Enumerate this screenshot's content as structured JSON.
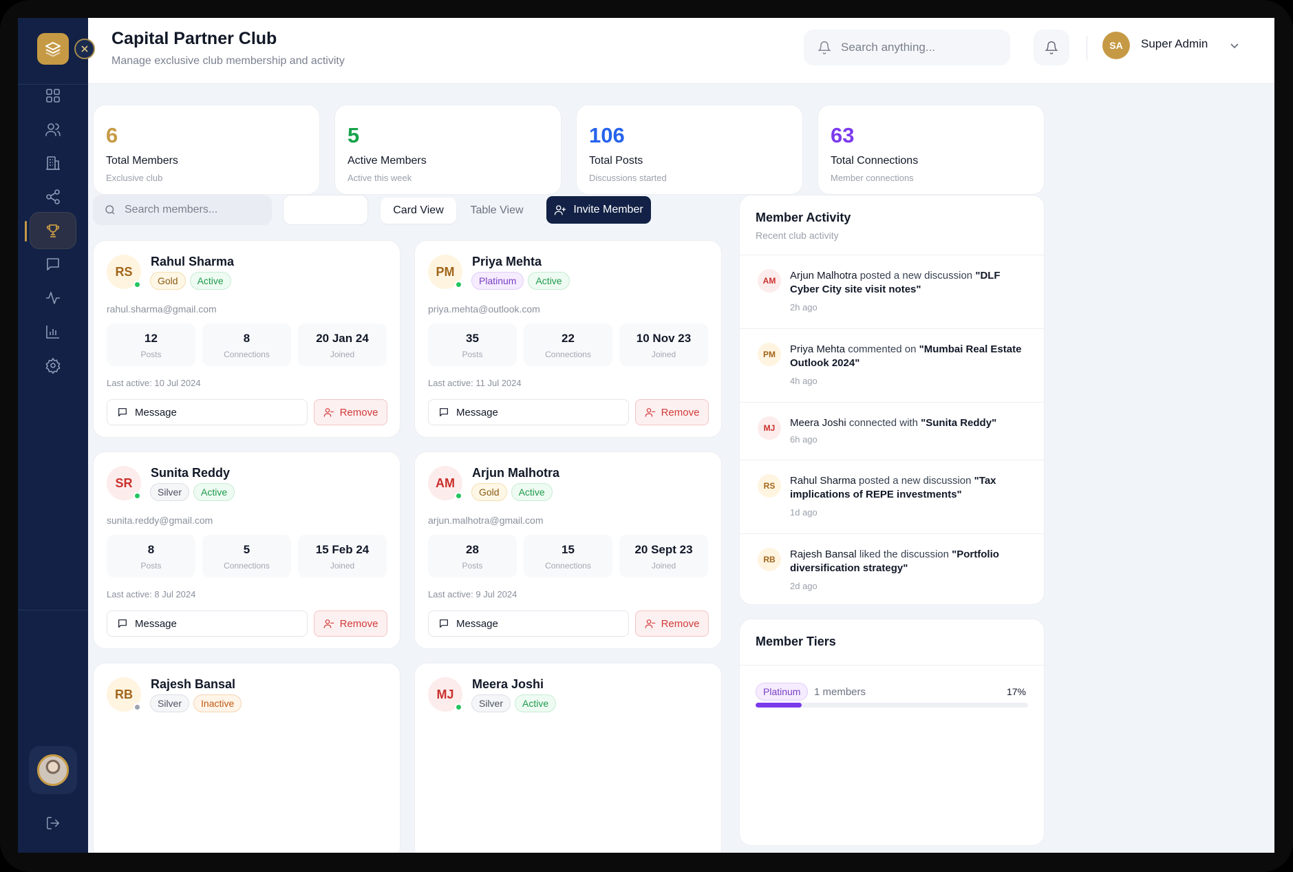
{
  "header": {
    "title": "Capital Partner Club",
    "subtitle": "Manage exclusive club membership and activity",
    "search_placeholder": "Search anything...",
    "user_initials": "SA",
    "user_name": "Super Admin"
  },
  "sidebar": {
    "items": [
      {
        "icon": "dashboard-icon",
        "active": false
      },
      {
        "icon": "users-icon",
        "active": false
      },
      {
        "icon": "building-icon",
        "active": false
      },
      {
        "icon": "share-icon",
        "active": false
      },
      {
        "icon": "trophy-icon",
        "active": true
      },
      {
        "icon": "message-icon",
        "active": false
      },
      {
        "icon": "activity-icon",
        "active": false
      },
      {
        "icon": "bar-chart-icon",
        "active": false
      },
      {
        "icon": "settings-icon",
        "active": false
      }
    ]
  },
  "stats": [
    {
      "value": "6",
      "label": "Total Members",
      "sub": "Exclusive club",
      "color": "#c69a45"
    },
    {
      "value": "5",
      "label": "Active Members",
      "sub": "Active this week",
      "color": "#16a34a"
    },
    {
      "value": "106",
      "label": "Total Posts",
      "sub": "Discussions started",
      "color": "#2563eb"
    },
    {
      "value": "63",
      "label": "Total Connections",
      "sub": "Member connections",
      "color": "#7c3aed"
    }
  ],
  "toolbar": {
    "search_placeholder": "Search members...",
    "card_view": "Card View",
    "table_view": "Table View",
    "invite": "Invite Member"
  },
  "members": [
    {
      "initials": "RS",
      "name": "Rahul Sharma",
      "tier": "Gold",
      "status": "Active",
      "email": "rahul.sharma@gmail.com",
      "posts": "12",
      "connections": "8",
      "joined": "20 Jan 24",
      "last_active": "Last active: 10 Jul 2024"
    },
    {
      "initials": "PM",
      "name": "Priya Mehta",
      "tier": "Platinum",
      "status": "Active",
      "email": "priya.mehta@outlook.com",
      "posts": "35",
      "connections": "22",
      "joined": "10 Nov 23",
      "last_active": "Last active: 11 Jul 2024"
    },
    {
      "initials": "SR",
      "name": "Sunita Reddy",
      "tier": "Silver",
      "status": "Active",
      "email": "sunita.reddy@gmail.com",
      "posts": "8",
      "connections": "5",
      "joined": "15 Feb 24",
      "last_active": "Last active: 8 Jul 2024"
    },
    {
      "initials": "AM",
      "name": "Arjun Malhotra",
      "tier": "Gold",
      "status": "Active",
      "email": "arjun.malhotra@gmail.com",
      "posts": "28",
      "connections": "15",
      "joined": "20 Sept 23",
      "last_active": "Last active: 9 Jul 2024"
    },
    {
      "initials": "RB",
      "name": "Rajesh Bansal",
      "tier": "Silver",
      "status": "Inactive"
    },
    {
      "initials": "MJ",
      "name": "Meera Joshi",
      "tier": "Silver",
      "status": "Active"
    }
  ],
  "card_labels": {
    "posts": "Posts",
    "connections": "Connections",
    "joined": "Joined",
    "message": "Message",
    "remove": "Remove"
  },
  "activity": {
    "title": "Member Activity",
    "subtitle": "Recent club activity",
    "items": [
      {
        "initials": "AM",
        "name": "Arjun Malhotra",
        "action": " posted a new discussion ",
        "target": "\"DLF Cyber City site visit notes\"",
        "time": "2h ago"
      },
      {
        "initials": "PM",
        "name": "Priya Mehta",
        "action": " commented on ",
        "target": "\"Mumbai Real Estate Outlook 2024\"",
        "time": "4h ago"
      },
      {
        "initials": "MJ",
        "name": "Meera Joshi",
        "action": " connected with ",
        "target": "\"Sunita Reddy\"",
        "time": "6h ago"
      },
      {
        "initials": "RS",
        "name": "Rahul Sharma",
        "action": " posted a new discussion ",
        "target": "\"Tax implications of REPE investments\"",
        "time": "1d ago"
      },
      {
        "initials": "RB",
        "name": "Rajesh Bansal",
        "action": " liked the discussion ",
        "target": "\"Portfolio diversification strategy\"",
        "time": "2d ago"
      }
    ]
  },
  "tiers": {
    "title": "Member Tiers",
    "items": [
      {
        "tier": "Platinum",
        "count": "1 members",
        "percent": "17%",
        "fraction": 0.17
      }
    ]
  }
}
